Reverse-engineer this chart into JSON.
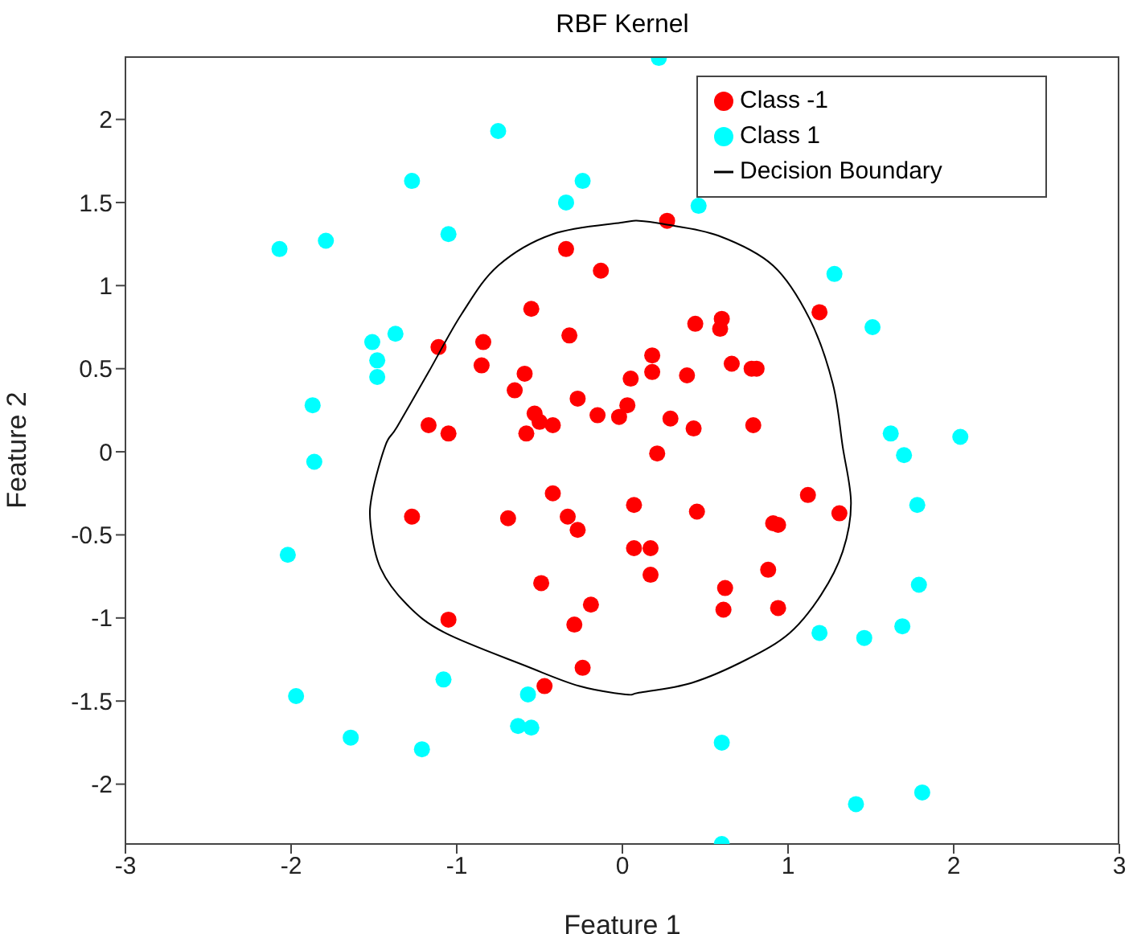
{
  "chart_data": {
    "type": "scatter",
    "title": "RBF Kernel",
    "xlabel": "Feature 1",
    "ylabel": "Feature 2",
    "xlim": [
      -3,
      3
    ],
    "xticks": [
      -3,
      -2,
      -1,
      0,
      1,
      2,
      3
    ],
    "ylim": [
      -2.36,
      2.38
    ],
    "yticks": [
      -2,
      -1.5,
      -1,
      -0.5,
      0,
      0.5,
      1,
      1.5,
      2
    ],
    "grid": false,
    "legend": "top right",
    "marker": "circle",
    "series": [
      {
        "name": "Class -1",
        "type": "scatter",
        "color": "#ff0000",
        "x": [
          -0.34,
          -0.13,
          -0.55,
          -0.32,
          -1.11,
          -0.84,
          -0.85,
          -0.59,
          -0.65,
          -0.27,
          -0.53,
          -0.5,
          -0.42,
          -0.58,
          -0.15,
          -0.02,
          0.03,
          0.05,
          -1.17,
          -1.05,
          0.27,
          1.19,
          0.44,
          0.6,
          0.59,
          0.18,
          0.18,
          0.39,
          0.66,
          0.78,
          0.81,
          0.29,
          0.43,
          0.79,
          0.21,
          0.07,
          0.45,
          1.12,
          1.31,
          0.91,
          0.94,
          0.07,
          0.17,
          0.17,
          0.88,
          0.62,
          0.61,
          0.94,
          -0.42,
          -1.27,
          -0.69,
          -0.33,
          -0.27,
          -0.49,
          -0.19,
          -0.29,
          -1.05,
          -0.24,
          -0.47
        ],
        "values": [
          1.22,
          1.09,
          0.86,
          0.7,
          0.63,
          0.66,
          0.52,
          0.47,
          0.37,
          0.32,
          0.23,
          0.18,
          0.16,
          0.11,
          0.22,
          0.21,
          0.28,
          0.44,
          0.16,
          0.11,
          1.39,
          0.84,
          0.77,
          0.8,
          0.74,
          0.58,
          0.48,
          0.46,
          0.53,
          0.5,
          0.5,
          0.2,
          0.14,
          0.16,
          -0.01,
          -0.32,
          -0.36,
          -0.26,
          -0.37,
          -0.43,
          -0.44,
          -0.58,
          -0.58,
          -0.74,
          -0.71,
          -0.82,
          -0.95,
          -0.94,
          -0.25,
          -0.39,
          -0.4,
          -0.39,
          -0.47,
          -0.79,
          -0.92,
          -1.04,
          -1.01,
          -1.3,
          -1.41
        ]
      },
      {
        "name": "Class 1",
        "type": "scatter",
        "color": "#00ffff",
        "x": [
          -2.07,
          -1.79,
          -1.27,
          -0.75,
          -1.05,
          -0.34,
          -0.24,
          -1.51,
          -1.48,
          -1.48,
          -1.37,
          -1.87,
          0.22,
          0.46,
          1.28,
          1.51,
          1.62,
          2.04,
          1.7,
          1.78,
          1.79,
          1.69,
          1.19,
          1.46,
          0.6,
          1.41,
          1.81,
          0.6,
          -1.86,
          -2.02,
          -1.97,
          -1.64,
          -1.21,
          -1.08,
          -0.57,
          -0.63,
          -0.55
        ],
        "values": [
          1.22,
          1.27,
          1.63,
          1.93,
          1.31,
          1.5,
          1.63,
          0.66,
          0.55,
          0.45,
          0.71,
          0.28,
          2.37,
          1.48,
          1.07,
          0.75,
          0.11,
          0.09,
          -0.02,
          -0.32,
          -0.8,
          -1.05,
          -1.09,
          -1.12,
          -1.75,
          -2.12,
          -2.05,
          -2.36,
          -0.06,
          -0.62,
          -1.47,
          -1.72,
          -1.79,
          -1.37,
          -1.46,
          -1.65,
          -1.66
        ]
      }
    ],
    "annotations": [
      "Decision Boundary"
    ]
  }
}
